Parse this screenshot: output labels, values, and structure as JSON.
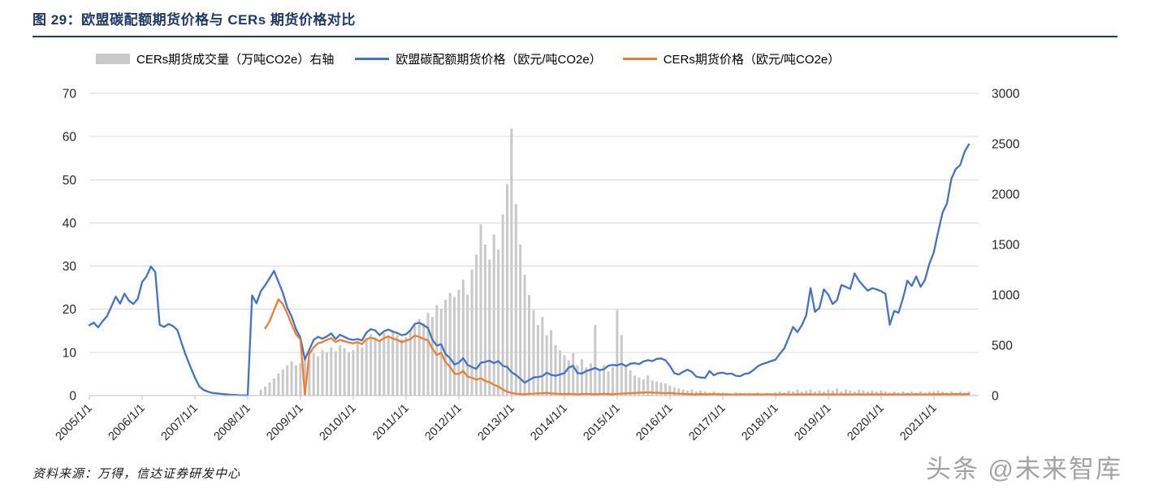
{
  "header": {
    "title": "图 29：欧盟碳配额期货价格与 CERs 期货价格对比"
  },
  "legend": {
    "items": [
      {
        "label": "CERs期货成交量（万吨CO2e）右轴",
        "type": "bar",
        "color": "#c9c9c9"
      },
      {
        "label": "欧盟碳配额期货价格（欧元/吨CO2e）",
        "type": "line",
        "color": "#4472c4"
      },
      {
        "label": "CERs期货价格（欧元/吨CO2e）",
        "type": "line",
        "color": "#ed7d31"
      }
    ]
  },
  "footer": {
    "source": "资料来源：万得，信达证券研发中心"
  },
  "watermark": {
    "text": "头条 @未来智库"
  },
  "chart_data": {
    "type": "combo",
    "title": "欧盟碳配额期货价格与 CERs 期货价格对比",
    "x_min": 2005.0,
    "x_max": 2021.85,
    "x_tick_start_year": 2005,
    "x_tick_labels": [
      "2005/1/1",
      "2006/1/1",
      "2007/1/1",
      "2008/1/1",
      "2009/1/1",
      "2010/1/1",
      "2011/1/1",
      "2012/1/1",
      "2013/1/1",
      "2014/1/1",
      "2015/1/1",
      "2016/1/1",
      "2017/1/1",
      "2018/1/1",
      "2019/1/1",
      "2020/1/1",
      "2021/1/1"
    ],
    "left_axis": {
      "min": 0,
      "max": 70,
      "ticks": [
        0,
        10,
        20,
        30,
        40,
        50,
        60,
        70
      ]
    },
    "right_axis": {
      "min": 0,
      "max": 3000,
      "ticks": [
        0,
        500,
        1000,
        1500,
        2000,
        2500,
        3000
      ]
    },
    "grid": true,
    "legend_position": "top",
    "series": [
      {
        "name": "CERs期货成交量（万吨CO2e）右轴",
        "type": "bar",
        "axis": "right",
        "color": "#c9c9c9",
        "x_start": 2008.25,
        "x_step": 0.0833333,
        "values": [
          60,
          90,
          130,
          170,
          220,
          260,
          300,
          340,
          300,
          320,
          380,
          350,
          420,
          390,
          450,
          430,
          480,
          440,
          500,
          470,
          430,
          450,
          520,
          480,
          560,
          610,
          580,
          540,
          620,
          590,
          650,
          600,
          560,
          580,
          640,
          700,
          760,
          720,
          820,
          780,
          900,
          860,
          950,
          1020,
          980,
          1050,
          1150,
          1000,
          1250,
          1400,
          1700,
          1500,
          1350,
          1600,
          1450,
          1800,
          2100,
          2650,
          1900,
          1500,
          1200,
          1000,
          850,
          700,
          780,
          600,
          650,
          500,
          450,
          400,
          350,
          420,
          300,
          360,
          280,
          320,
          700,
          260,
          300,
          240,
          280,
          850,
          600,
          300,
          250,
          200,
          180,
          160,
          200,
          150,
          140,
          130,
          120,
          100,
          80,
          70,
          60,
          50,
          60,
          40,
          50,
          40,
          30,
          40,
          30,
          30,
          25,
          20,
          30,
          25,
          20,
          25,
          20,
          30,
          20,
          25,
          20,
          30,
          40,
          30,
          50,
          40,
          60,
          40,
          50,
          60,
          40,
          50,
          40,
          60,
          50,
          70,
          40,
          60,
          50,
          40,
          60,
          50,
          40,
          50,
          40,
          50,
          40,
          30,
          40,
          30,
          40,
          30,
          40,
          30,
          40,
          30,
          40,
          40,
          50,
          40,
          30,
          40,
          30,
          40,
          30,
          40
        ]
      },
      {
        "name": "欧盟碳配额期货价格（欧元/吨CO2e）",
        "type": "line",
        "axis": "left",
        "color": "#4472c4",
        "x_start": 2005.0,
        "x_step": 0.0833333,
        "values": [
          16.3,
          16.9,
          15.8,
          17.2,
          18.4,
          20.6,
          22.9,
          21.3,
          23.6,
          22.0,
          21.2,
          22.4,
          26.3,
          27.6,
          29.9,
          28.6,
          16.4,
          15.9,
          16.6,
          16.1,
          15.2,
          12.1,
          9.2,
          6.6,
          4.2,
          2.1,
          1.3,
          0.9,
          0.6,
          0.5,
          0.4,
          0.3,
          0.2,
          0.15,
          0.1,
          0.08,
          0.06,
          23.2,
          21.4,
          24.2,
          25.6,
          27.2,
          28.9,
          26.3,
          23.8,
          20.4,
          18.3,
          15.4,
          13.4,
          8.4,
          10.6,
          12.9,
          13.6,
          13.2,
          13.7,
          14.4,
          13.1,
          14.1,
          13.6,
          13.1,
          12.9,
          13.1,
          12.8,
          14.6,
          15.4,
          15.1,
          14.0,
          14.9,
          15.3,
          14.8,
          14.5,
          14.0,
          14.2,
          15.1,
          16.6,
          16.9,
          16.3,
          15.7,
          12.9,
          11.6,
          11.9,
          9.6,
          8.7,
          7.2,
          7.6,
          8.7,
          7.1,
          6.6,
          6.2,
          7.6,
          7.8,
          8.1,
          7.5,
          8.0,
          6.9,
          6.6,
          5.4,
          4.8,
          3.9,
          3.0,
          3.6,
          4.2,
          4.3,
          4.5,
          5.3,
          4.8,
          4.6,
          4.9,
          5.2,
          6.5,
          6.9,
          5.2,
          5.1,
          5.7,
          6.0,
          6.4,
          5.9,
          6.1,
          6.9,
          7.1,
          7.0,
          7.4,
          6.8,
          7.4,
          7.5,
          7.3,
          7.9,
          8.2,
          8.0,
          8.5,
          8.6,
          8.2,
          6.9,
          5.2,
          4.9,
          5.5,
          6.0,
          5.5,
          4.4,
          4.2,
          4.1,
          5.7,
          4.7,
          5.2,
          5.3,
          5.0,
          5.1,
          4.6,
          4.5,
          5.0,
          5.2,
          5.9,
          6.8,
          7.3,
          7.6,
          8.0,
          8.3,
          9.7,
          10.9,
          13.4,
          15.9,
          14.7,
          16.3,
          18.6,
          24.9,
          19.4,
          20.3,
          24.6,
          23.4,
          21.2,
          22.1,
          25.6,
          25.2,
          24.7,
          28.3,
          26.6,
          25.4,
          24.3,
          24.9,
          24.6,
          24.2,
          23.6,
          16.4,
          19.6,
          19.2,
          22.6,
          26.6,
          25.4,
          27.6,
          25.2,
          26.8,
          30.5,
          33.2,
          38.0,
          42.4,
          44.5,
          50.2,
          52.5,
          53.4,
          56.5,
          58.2
        ]
      },
      {
        "name": "CERs期货价格（欧元/吨CO2e）",
        "type": "line",
        "axis": "left",
        "color": "#ed7d31",
        "x_start": 2008.3333,
        "x_step": 0.0833333,
        "values": [
          15.6,
          17.2,
          19.8,
          22.3,
          21.2,
          19.0,
          16.5,
          14.2,
          13.0,
          0.2,
          9.6,
          11.2,
          12.1,
          12.4,
          12.9,
          13.3,
          12.4,
          12.9,
          12.6,
          12.3,
          12.1,
          12.4,
          11.9,
          13.1,
          13.4,
          13.1,
          12.6,
          13.3,
          13.7,
          13.2,
          12.9,
          12.4,
          12.7,
          13.1,
          13.9,
          13.6,
          13.1,
          12.8,
          10.9,
          9.4,
          9.9,
          7.7,
          6.7,
          5.1,
          5.0,
          5.7,
          4.4,
          4.1,
          3.7,
          4.0,
          3.4,
          3.1,
          2.5,
          2.1,
          1.4,
          0.9,
          0.6,
          0.45,
          0.35,
          0.3,
          0.4,
          0.45,
          0.5,
          0.55,
          0.6,
          0.5,
          0.45,
          0.4,
          0.35,
          0.4,
          0.35,
          0.3,
          0.35,
          0.4,
          0.35,
          0.3,
          0.35,
          0.4,
          0.35,
          0.3,
          0.4,
          0.45,
          0.5,
          0.55,
          0.6,
          0.65,
          0.7,
          0.75,
          0.7,
          0.65,
          0.6,
          0.55,
          0.6,
          0.5,
          0.45,
          0.4,
          0.35,
          0.3,
          0.3,
          0.35,
          0.3,
          0.3,
          0.35,
          0.3,
          0.3,
          0.3,
          0.25,
          0.25,
          0.3,
          0.3,
          0.25,
          0.3,
          0.3,
          0.25,
          0.3,
          0.3,
          0.25,
          0.25,
          0.3,
          0.25,
          0.25,
          0.3,
          0.25,
          0.25,
          0.3,
          0.25,
          0.25,
          0.3,
          0.25,
          0.3,
          0.25,
          0.25,
          0.3,
          0.25,
          0.25,
          0.3,
          0.25,
          0.25,
          0.3,
          0.25,
          0.3,
          0.25,
          0.25,
          0.3,
          0.25,
          0.25,
          0.3,
          0.25,
          0.3,
          0.25,
          0.25,
          0.3,
          0.3,
          0.3,
          0.35,
          0.3,
          0.3,
          0.35,
          0.3,
          0.3,
          0.35
        ]
      }
    ]
  }
}
